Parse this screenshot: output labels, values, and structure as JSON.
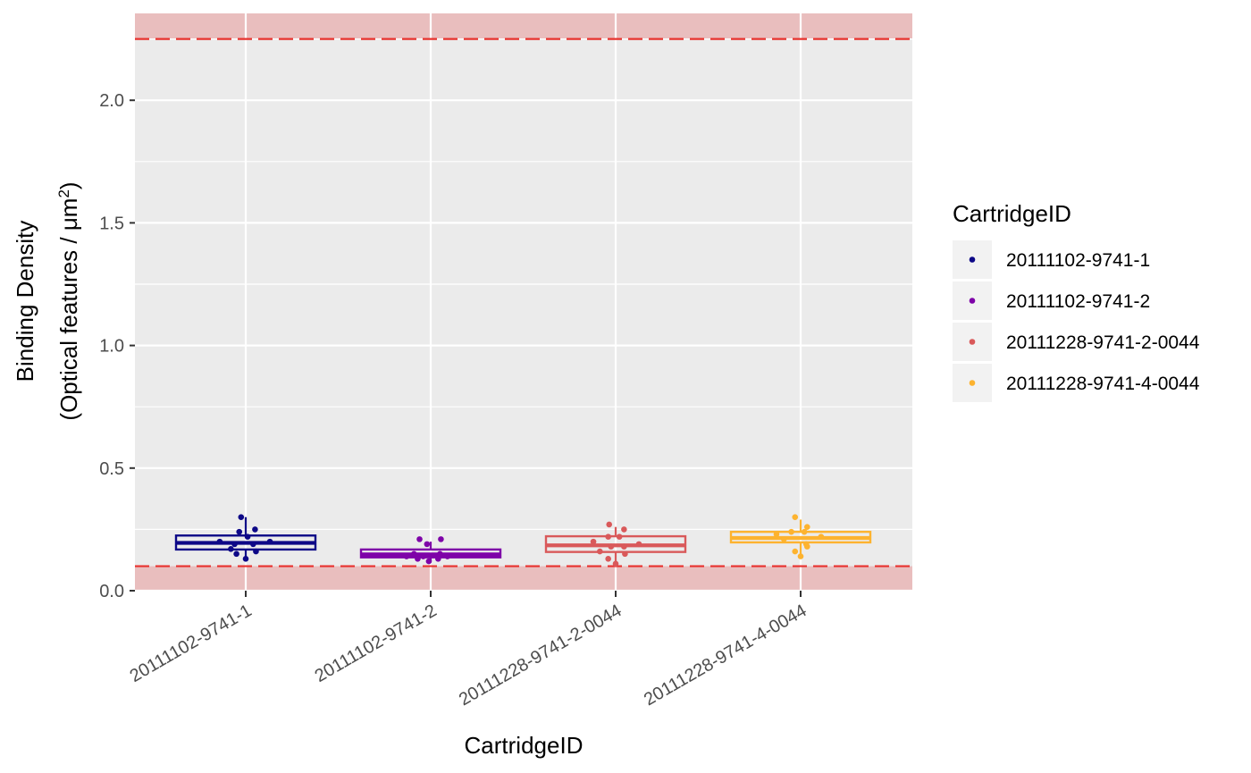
{
  "chart_data": {
    "type": "boxplot",
    "xlabel": "CartridgeID",
    "ylabel_line1": "Binding Density",
    "ylabel_line2_prefix": "(Optical features / μm",
    "ylabel_line2_sup": "2",
    "ylabel_line2_suffix": ")",
    "ylim": [
      0,
      2.36
    ],
    "yticks": [
      {
        "value": 0.0,
        "label": "0.0"
      },
      {
        "value": 0.5,
        "label": "0.5"
      },
      {
        "value": 1.0,
        "label": "1.0"
      },
      {
        "value": 1.5,
        "label": "1.5"
      },
      {
        "value": 2.0,
        "label": "2.0"
      }
    ],
    "ygrid_minor": [
      0.25,
      0.75,
      1.25,
      1.75,
      2.25
    ],
    "grid": true,
    "panel_background": "#ebebeb",
    "categories": [
      "20111102-9741-1",
      "20111102-9741-2",
      "20111228-9741-2-0044",
      "20111228-9741-4-0044"
    ],
    "thresholds": {
      "lower": 0.1,
      "upper": 2.25,
      "line_color": "#e8322e",
      "band_color": "#e8a6a6"
    },
    "legend": {
      "title": "CartridgeID",
      "position": "right",
      "entries": [
        "20111102-9741-1",
        "20111102-9741-2",
        "20111228-9741-2-0044",
        "20111228-9741-4-0044"
      ]
    },
    "series": [
      {
        "name": "20111102-9741-1",
        "color": "#0d0887",
        "box": {
          "q1": 0.168,
          "median": 0.195,
          "q3": 0.225,
          "whisker_low": 0.13,
          "whisker_high": 0.3
        },
        "points": [
          [
            -0.05,
            0.3
          ],
          [
            0.1,
            0.25
          ],
          [
            -0.07,
            0.24
          ],
          [
            0.02,
            0.22
          ],
          [
            -0.28,
            0.2
          ],
          [
            0.26,
            0.2
          ],
          [
            -0.12,
            0.19
          ],
          [
            0.08,
            0.19
          ],
          [
            -0.16,
            0.17
          ],
          [
            0.11,
            0.16
          ],
          [
            -0.1,
            0.15
          ],
          [
            0.0,
            0.13
          ]
        ]
      },
      {
        "name": "20111102-9741-2",
        "color": "#7e03a8",
        "box": {
          "q1": 0.136,
          "median": 0.148,
          "q3": 0.168,
          "whisker_low": 0.12,
          "whisker_high": 0.2
        },
        "points": [
          [
            -0.12,
            0.21
          ],
          [
            0.11,
            0.21
          ],
          [
            -0.04,
            0.19
          ],
          [
            -0.18,
            0.15
          ],
          [
            0.1,
            0.15
          ],
          [
            -0.26,
            0.14
          ],
          [
            -0.08,
            0.14
          ],
          [
            0.18,
            0.14
          ],
          [
            -0.14,
            0.13
          ],
          [
            0.08,
            0.13
          ],
          [
            -0.02,
            0.12
          ]
        ]
      },
      {
        "name": "20111228-9741-2-0044",
        "color": "#d9595a",
        "box": {
          "q1": 0.158,
          "median": 0.185,
          "q3": 0.222,
          "whisker_low": 0.11,
          "whisker_high": 0.26
        },
        "points": [
          [
            -0.07,
            0.27
          ],
          [
            0.09,
            0.25
          ],
          [
            -0.08,
            0.22
          ],
          [
            0.04,
            0.22
          ],
          [
            -0.24,
            0.2
          ],
          [
            0.25,
            0.19
          ],
          [
            -0.05,
            0.18
          ],
          [
            0.09,
            0.18
          ],
          [
            -0.17,
            0.16
          ],
          [
            0.1,
            0.15
          ],
          [
            -0.08,
            0.13
          ],
          [
            0.0,
            0.11
          ]
        ]
      },
      {
        "name": "20111228-9741-4-0044",
        "color": "#fdb32f",
        "box": {
          "q1": 0.197,
          "median": 0.215,
          "q3": 0.24,
          "whisker_low": 0.14,
          "whisker_high": 0.29
        },
        "points": [
          [
            -0.06,
            0.3
          ],
          [
            0.07,
            0.26
          ],
          [
            -0.1,
            0.24
          ],
          [
            0.04,
            0.24
          ],
          [
            -0.26,
            0.23
          ],
          [
            0.22,
            0.22
          ],
          [
            -0.18,
            0.21
          ],
          [
            0.06,
            0.19
          ],
          [
            0.07,
            0.18
          ],
          [
            -0.06,
            0.16
          ],
          [
            0.0,
            0.14
          ]
        ]
      }
    ]
  }
}
